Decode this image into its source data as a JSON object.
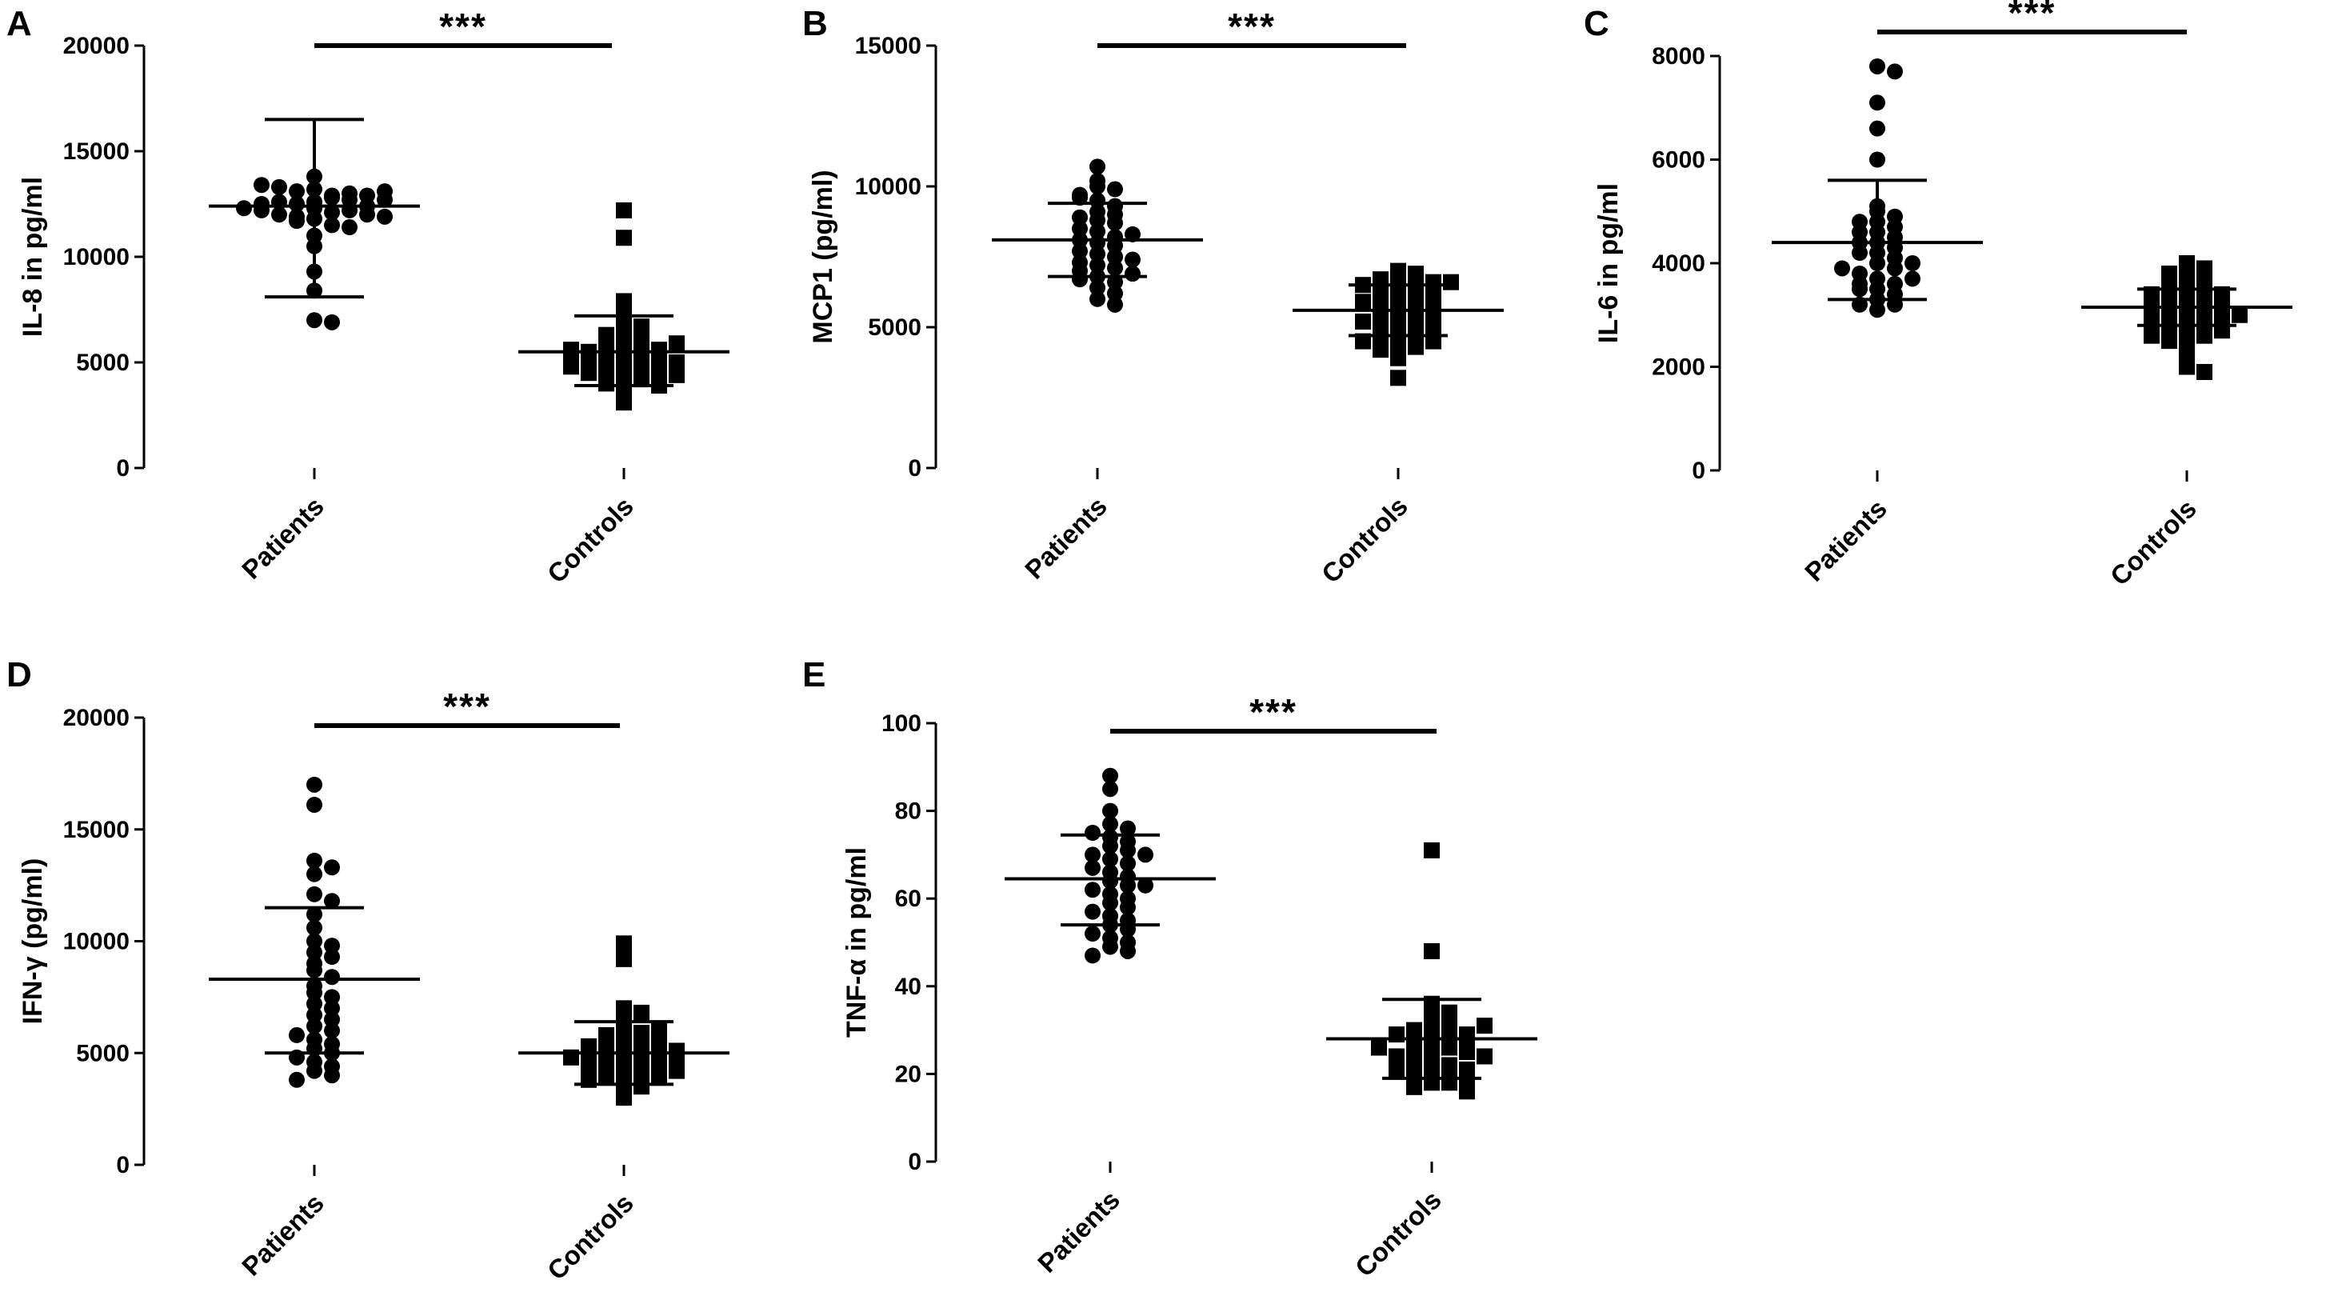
{
  "chart_data": [
    {
      "panel": "A",
      "type": "scatter",
      "ylabel": "IL-8 in pg/ml",
      "ylim": [
        0,
        20000
      ],
      "yticks": [
        0,
        5000,
        10000,
        15000,
        20000
      ],
      "categories": [
        "Patients",
        "Controls"
      ],
      "significance": "***",
      "series": [
        {
          "name": "Patients",
          "marker": "circle",
          "mean": 12400,
          "sd_low": 8100,
          "sd_high": 16500,
          "values": [
            13200,
            12900,
            13100,
            12600,
            12800,
            13000,
            12500,
            12300,
            12700,
            13300,
            12100,
            11900,
            12200,
            12600,
            11800,
            12000,
            12400,
            12900,
            13400,
            12000,
            11500,
            11700,
            12200,
            12500,
            11900,
            11400,
            11000,
            10500,
            13800,
            12300,
            9300,
            8400,
            7000,
            6900,
            13100,
            12700
          ]
        },
        {
          "name": "Controls",
          "marker": "square",
          "mean": 5500,
          "sd_low": 3900,
          "sd_high": 7200,
          "values": [
            12200,
            10900,
            7900,
            7200,
            6900,
            6700,
            6400,
            6100,
            5900,
            5800,
            5700,
            5600,
            5500,
            5400,
            5400,
            5300,
            5200,
            5100,
            5000,
            4900,
            4800,
            4700,
            4600,
            4500,
            4400,
            4300,
            4200,
            4000,
            3900,
            3700,
            3100,
            6300,
            5900,
            5600,
            5200,
            4800
          ]
        }
      ]
    },
    {
      "panel": "B",
      "type": "scatter",
      "ylabel": "MCP1 (pg/ml)",
      "ylim": [
        0,
        15000
      ],
      "yticks": [
        0,
        5000,
        10000,
        15000
      ],
      "categories": [
        "Patients",
        "Controls"
      ],
      "significance": "***",
      "series": [
        {
          "name": "Patients",
          "marker": "circle",
          "mean": 8100,
          "sd_low": 6800,
          "sd_high": 9400,
          "values": [
            10700,
            10200,
            10000,
            9900,
            9700,
            9500,
            9300,
            9100,
            9000,
            8900,
            8800,
            8700,
            8500,
            8400,
            8200,
            8100,
            8000,
            7900,
            7700,
            7600,
            7500,
            7300,
            7200,
            7100,
            7000,
            6900,
            6800,
            6600,
            6400,
            6200,
            6000,
            5800,
            9600,
            8300,
            7400,
            6700
          ]
        },
        {
          "name": "Controls",
          "marker": "square",
          "mean": 5600,
          "sd_low": 4700,
          "sd_high": 6500,
          "values": [
            7000,
            6900,
            6800,
            6800,
            6700,
            6600,
            6500,
            6400,
            6300,
            6200,
            6100,
            6000,
            5900,
            5800,
            5700,
            5600,
            5500,
            5400,
            5300,
            5200,
            5100,
            5000,
            4900,
            4800,
            4700,
            4600,
            4500,
            4400,
            4300,
            4200,
            3900,
            3200,
            6600,
            5900,
            5200,
            4500
          ]
        }
      ]
    },
    {
      "panel": "C",
      "type": "scatter",
      "ylabel": "IL-6 in pg/ml",
      "ylim": [
        0,
        8000
      ],
      "yticks": [
        0,
        2000,
        4000,
        6000,
        8000
      ],
      "categories": [
        "Patients",
        "Controls"
      ],
      "significance": "***",
      "series": [
        {
          "name": "Patients",
          "marker": "circle",
          "mean": 4400,
          "sd_low": 3300,
          "sd_high": 5600,
          "values": [
            7800,
            7700,
            7100,
            6600,
            6000,
            5100,
            5000,
            4900,
            4800,
            4700,
            4600,
            4500,
            4400,
            4300,
            4200,
            4100,
            4000,
            3900,
            3800,
            3700,
            3600,
            3500,
            3400,
            3300,
            3200,
            3100,
            4800,
            4400,
            4000,
            3600,
            3200,
            3900,
            4200,
            3500,
            4600,
            3700
          ]
        },
        {
          "name": "Controls",
          "marker": "square",
          "mean": 3150,
          "sd_low": 2800,
          "sd_high": 3500,
          "values": [
            4000,
            3900,
            3800,
            3700,
            3600,
            3500,
            3500,
            3400,
            3400,
            3300,
            3300,
            3200,
            3200,
            3100,
            3100,
            3000,
            3000,
            2900,
            2900,
            2800,
            2800,
            2700,
            2600,
            2500,
            2400,
            2200,
            2000,
            1900,
            3600,
            3300,
            3100,
            2900,
            2700,
            3400,
            3000,
            2600
          ]
        }
      ]
    },
    {
      "panel": "D",
      "type": "scatter",
      "ylabel": "IFN-γ (pg/ml)",
      "ylim": [
        0,
        20000
      ],
      "yticks": [
        0,
        5000,
        10000,
        15000,
        20000
      ],
      "categories": [
        "Patients",
        "Controls"
      ],
      "significance": "***",
      "series": [
        {
          "name": "Patients",
          "marker": "circle",
          "mean": 8300,
          "sd_low": 5000,
          "sd_high": 11500,
          "values": [
            17000,
            16100,
            13600,
            13300,
            13000,
            12100,
            11200,
            10600,
            10000,
            9800,
            9500,
            9300,
            9000,
            8700,
            8400,
            8000,
            7700,
            7500,
            7200,
            7000,
            6700,
            6500,
            6200,
            6000,
            5800,
            5600,
            5400,
            5200,
            5000,
            4800,
            4600,
            4400,
            4200,
            4000,
            3800,
            11800
          ]
        },
        {
          "name": "Controls",
          "marker": "square",
          "mean": 5000,
          "sd_low": 3600,
          "sd_high": 6400,
          "values": [
            9900,
            9200,
            7000,
            6800,
            6400,
            6100,
            5900,
            5700,
            5600,
            5500,
            5400,
            5300,
            5200,
            5100,
            5000,
            4900,
            4800,
            4700,
            4600,
            4500,
            4400,
            4300,
            4200,
            4100,
            4000,
            3900,
            3800,
            3700,
            3500,
            3000,
            5800,
            5100,
            4600,
            4200,
            6000,
            4800
          ]
        }
      ]
    },
    {
      "panel": "E",
      "type": "scatter",
      "ylabel": "TNF-α in pg/ml",
      "ylim": [
        0,
        100
      ],
      "yticks": [
        0,
        20,
        40,
        60,
        80,
        100
      ],
      "categories": [
        "Patients",
        "Controls"
      ],
      "significance": "***",
      "series": [
        {
          "name": "Patients",
          "marker": "circle",
          "mean": 64.5,
          "sd_low": 54,
          "sd_high": 74.5,
          "values": [
            88,
            85,
            80,
            77,
            76,
            75,
            74,
            73,
            72,
            71,
            70,
            69,
            68,
            67,
            66,
            65,
            64,
            63,
            62,
            61,
            60,
            59,
            58,
            57,
            56,
            55,
            54,
            53,
            52,
            51,
            50,
            49,
            48,
            47,
            70,
            63
          ]
        },
        {
          "name": "Controls",
          "marker": "square",
          "mean": 28,
          "sd_low": 19,
          "sd_high": 37,
          "values": [
            71,
            48,
            36,
            34,
            33,
            32,
            31,
            30,
            30,
            29,
            29,
            28,
            28,
            27,
            27,
            26,
            26,
            25,
            25,
            24,
            24,
            23,
            22,
            22,
            21,
            21,
            20,
            20,
            19,
            19,
            18,
            18,
            17,
            16,
            31,
            26
          ]
        }
      ]
    }
  ]
}
